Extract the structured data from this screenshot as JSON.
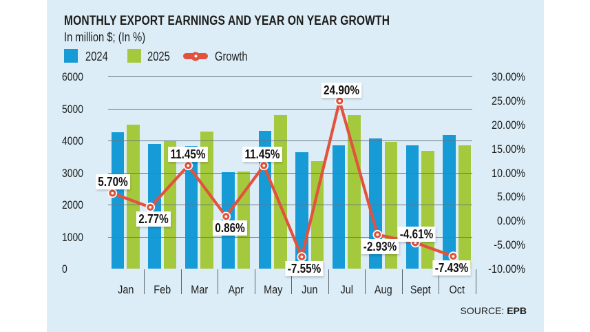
{
  "ui": {
    "title": "MONTHLY EXPORT EARNINGS AND YEAR ON YEAR GROWTH",
    "subtitle": "In million $; (In %)",
    "legend": [
      {
        "label": "2024",
        "color": "#169bd7"
      },
      {
        "label": "2025",
        "color": "#a5c93d"
      },
      {
        "label": "Growth",
        "color": "#e2523c"
      }
    ],
    "source_label": "SOURCE:",
    "source_value": "EPB"
  },
  "colors": {
    "panel_background": "#dcedf7",
    "bar_2024": "#169bd7",
    "bar_2025": "#a5c93d",
    "growth_line": "#e2523c",
    "gridline": "#66767f",
    "text": "#1d1d1b",
    "label_box_background": "#ffffff"
  },
  "chart_data": {
    "type": "bar",
    "title": "MONTHLY EXPORT EARNINGS AND YEAR ON YEAR GROWTH",
    "subtitle": "In million $; (In %)",
    "categories": [
      "Jan",
      "Feb",
      "Mar",
      "Apr",
      "May",
      "Jun",
      "Jul",
      "Aug",
      "Sept",
      "Oct"
    ],
    "series": [
      {
        "name": "2024",
        "type": "bar",
        "color": "#169bd7",
        "axis": "left",
        "values": [
          4250,
          3900,
          3830,
          3010,
          4300,
          3630,
          3840,
          4070,
          3850,
          4170
        ]
      },
      {
        "name": "2025",
        "type": "bar",
        "color": "#a5c93d",
        "axis": "left",
        "values": [
          4490,
          4010,
          4270,
          3040,
          4790,
          3355,
          4795,
          3950,
          3670,
          3860
        ]
      },
      {
        "name": "Growth",
        "type": "line",
        "color": "#e2523c",
        "axis": "right",
        "values": [
          5.7,
          2.77,
          11.45,
          0.86,
          11.45,
          -7.55,
          24.9,
          -2.93,
          -4.61,
          -7.43
        ],
        "data_labels": [
          "5.70%",
          "2.77%",
          "11.45%",
          "0.86%",
          "11.45%",
          "-7.55%",
          "24.90%",
          "-2.93%",
          "-4.61%",
          "-7.43%"
        ]
      }
    ],
    "left_axis": {
      "min": 0,
      "max": 6000,
      "step": 1000,
      "tick_labels": [
        "6000",
        "5000",
        "4000",
        "3000",
        "2000",
        "1000",
        "0"
      ]
    },
    "right_axis": {
      "min": -10,
      "max": 30,
      "step": 5,
      "tick_labels": [
        "30.00%",
        "25.00%",
        "20.00%",
        "15.00%",
        "10.00%",
        "5.00%",
        "0.00%",
        "-5.00%",
        "-10.00%"
      ]
    },
    "grid": true,
    "legend_position": "top-left",
    "source": "SOURCE: EPB"
  }
}
